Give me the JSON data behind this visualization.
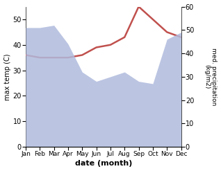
{
  "months": [
    "Jan",
    "Feb",
    "Mar",
    "Apr",
    "May",
    "Jun",
    "Jul",
    "Aug",
    "Sep",
    "Oct",
    "Nov",
    "Dec"
  ],
  "max_temp": [
    36,
    35,
    35,
    35,
    36,
    39,
    40,
    43,
    55,
    50,
    45,
    43
  ],
  "precipitation": [
    51,
    51,
    52,
    44,
    32,
    28,
    30,
    32,
    28,
    27,
    46,
    49
  ],
  "temp_color": "#c0504d",
  "precip_fill_color": "#b0bbdd",
  "temp_ylim": [
    0,
    55
  ],
  "precip_ylim": [
    0,
    60
  ],
  "xlabel": "date (month)",
  "ylabel_left": "max temp (C)",
  "ylabel_right": "med. precipitation\n(kg/m2)",
  "yticks_left": [
    0,
    10,
    20,
    30,
    40,
    50
  ],
  "yticks_right": [
    0,
    10,
    20,
    30,
    40,
    50,
    60
  ]
}
